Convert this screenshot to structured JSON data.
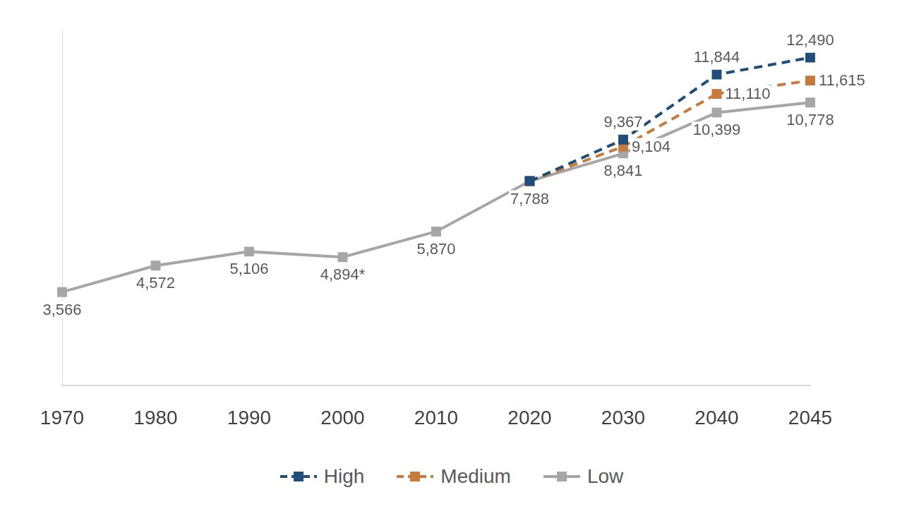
{
  "chart_data": {
    "type": "line",
    "categories": [
      "1970",
      "1980",
      "1990",
      "2000",
      "2010",
      "2020",
      "2030",
      "2040",
      "2045"
    ],
    "series": [
      {
        "name": "High",
        "color": "#1f4e79",
        "line_style": "dashed",
        "marker": "square",
        "values": [
          null,
          null,
          null,
          null,
          null,
          7788,
          9367,
          11844,
          12490
        ],
        "value_labels": [
          null,
          null,
          null,
          null,
          null,
          null,
          "9,367",
          "11,844",
          "12,490"
        ]
      },
      {
        "name": "Medium",
        "color": "#c67a3c",
        "line_style": "dashed",
        "marker": "square",
        "values": [
          null,
          null,
          null,
          null,
          null,
          7788,
          9104,
          11110,
          11615
        ],
        "value_labels": [
          null,
          null,
          null,
          null,
          null,
          null,
          "9,104",
          "11,110",
          "11,615"
        ]
      },
      {
        "name": "Low",
        "color": "#a6a6a6",
        "line_style": "solid",
        "marker": "square",
        "values": [
          3566,
          4572,
          5106,
          4894,
          5870,
          7788,
          8841,
          10399,
          10778
        ],
        "value_labels": [
          "3,566",
          "4,572",
          "5,106",
          "4,894*",
          "5,870",
          "7,788",
          "8,841",
          "10,399",
          "10,778"
        ]
      }
    ],
    "ylim": [
      0,
      13500
    ],
    "grid": false,
    "legend": "bottom",
    "data_labels": true,
    "tick_labels": "x"
  }
}
